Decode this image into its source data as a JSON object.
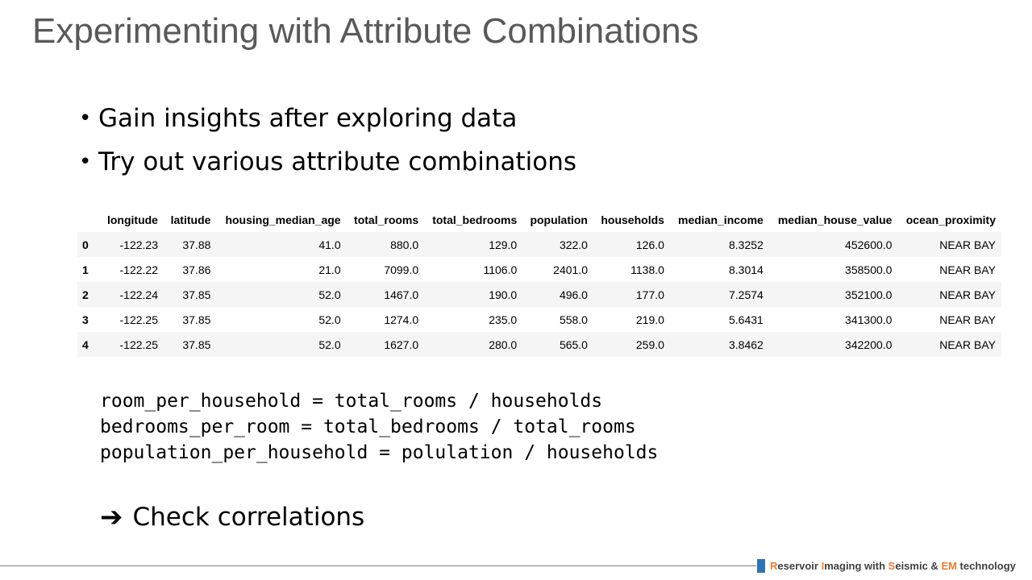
{
  "title": "Experimenting with Attribute Combinations",
  "bullets": [
    "Gain insights after exploring data",
    "Try out various attribute combinations"
  ],
  "table": {
    "columns": [
      "longitude",
      "latitude",
      "housing_median_age",
      "total_rooms",
      "total_bedrooms",
      "population",
      "households",
      "median_income",
      "median_house_value",
      "ocean_proximity"
    ],
    "rows": [
      {
        "index": "0",
        "cells": [
          "-122.23",
          "37.88",
          "41.0",
          "880.0",
          "129.0",
          "322.0",
          "126.0",
          "8.3252",
          "452600.0",
          "NEAR BAY"
        ]
      },
      {
        "index": "1",
        "cells": [
          "-122.22",
          "37.86",
          "21.0",
          "7099.0",
          "1106.0",
          "2401.0",
          "1138.0",
          "8.3014",
          "358500.0",
          "NEAR BAY"
        ]
      },
      {
        "index": "2",
        "cells": [
          "-122.24",
          "37.85",
          "52.0",
          "1467.0",
          "190.0",
          "496.0",
          "177.0",
          "7.2574",
          "352100.0",
          "NEAR BAY"
        ]
      },
      {
        "index": "3",
        "cells": [
          "-122.25",
          "37.85",
          "52.0",
          "1274.0",
          "235.0",
          "558.0",
          "219.0",
          "5.6431",
          "341300.0",
          "NEAR BAY"
        ]
      },
      {
        "index": "4",
        "cells": [
          "-122.25",
          "37.85",
          "52.0",
          "1627.0",
          "280.0",
          "565.0",
          "259.0",
          "3.8462",
          "342200.0",
          "NEAR BAY"
        ]
      }
    ]
  },
  "code_lines": [
    "room_per_household = total_rooms / households",
    "bedrooms_per_room = total_bedrooms / total_rooms",
    "population_per_household = polulation / households"
  ],
  "conclusion": {
    "arrow": "➔",
    "text": "Check correlations"
  },
  "footer": {
    "parts": [
      {
        "text": "R",
        "style": "hl"
      },
      {
        "text": "eservoir ",
        "style": ""
      },
      {
        "text": "I",
        "style": "hl"
      },
      {
        "text": "maging with ",
        "style": ""
      },
      {
        "text": "S",
        "style": "hl"
      },
      {
        "text": "eismic & ",
        "style": ""
      },
      {
        "text": "EM",
        "style": "hl"
      },
      {
        "text": " technology",
        "style": ""
      }
    ],
    "accent_color": "#ed7d31",
    "mark_color": "#2e74b5"
  }
}
